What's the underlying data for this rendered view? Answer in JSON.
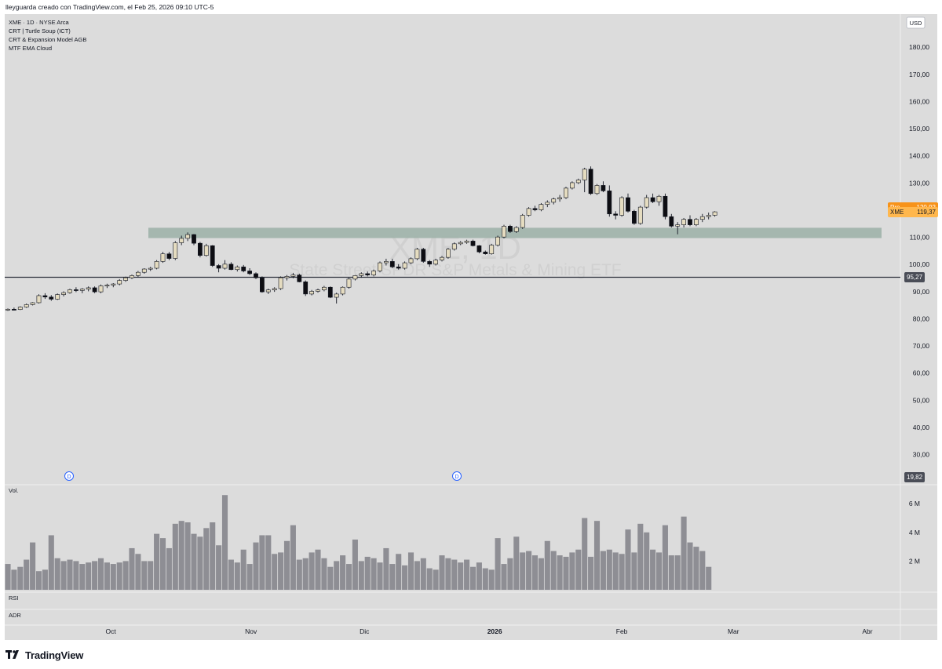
{
  "header": {
    "credit": "lleyguarda creado con TradingView.com, el Feb 25, 2026 09:10 UTC-5"
  },
  "legend": {
    "symbol_line": "XME · 1D · NYSE Arca",
    "indicators": [
      "CRT | Turtle Soup (ICT)",
      "CRT & Expansion Model AGB",
      "MTF EMA Cloud"
    ]
  },
  "watermark": {
    "ticker": "XME, 1D",
    "name": "State Street SPDR S&P Metals & Mining ETF"
  },
  "currency": "USD",
  "badges": {
    "pre_label": "Pre",
    "pre_value": "120,92",
    "last_label": "XME",
    "last_value": "119,37",
    "hline_value": "95,27",
    "extra_value": "19,82"
  },
  "panes": {
    "volume_label": "Vol.",
    "rsi_label": "RSI",
    "adr_label": "ADR"
  },
  "events": [
    "D",
    "D"
  ],
  "footer": {
    "brand": "TradingView"
  },
  "colors": {
    "background": "#dcdcdc",
    "up_body": "#e5dcc0",
    "down_body": "#0d0d12",
    "wick": "#131722",
    "zone": "#9eb2aa",
    "volume": "#8e8e94",
    "line": "#2a2e39",
    "pre_badge": "#f7931a",
    "last_badge": "#ffb74d",
    "level_badge": "#4a4d57"
  },
  "chart_data": {
    "type": "candlestick",
    "symbol": "XME",
    "timeframe": "1D",
    "y_axis": {
      "ticks": [
        "30,00",
        "40,00",
        "50,00",
        "60,00",
        "70,00",
        "80,00",
        "90,00",
        "100,00",
        "110,00",
        "120,00",
        "130,00",
        "140,00",
        "150,00",
        "160,00",
        "170,00",
        "180,00"
      ],
      "range": [
        25,
        195
      ]
    },
    "x_axis": {
      "ticks": [
        "Oct",
        "Nov",
        "Dic",
        "2026",
        "Feb",
        "Mar",
        "Abr"
      ]
    },
    "volume_axis": {
      "ticks": [
        "2 M",
        "4 M",
        "6 M"
      ]
    },
    "zone": {
      "low": 109.7,
      "high": 113.5
    },
    "horizontal_line": 95.27,
    "candles": [
      [
        83.2,
        83.8,
        82.9,
        83.5
      ],
      [
        83.5,
        84.1,
        83.1,
        83.4
      ],
      [
        83.4,
        84.6,
        83.2,
        84.3
      ],
      [
        84.3,
        85.6,
        84.0,
        85.2
      ],
      [
        85.2,
        86.1,
        84.9,
        85.9
      ],
      [
        85.9,
        89.0,
        85.6,
        88.5
      ],
      [
        88.5,
        89.4,
        87.3,
        88.0
      ],
      [
        88.0,
        88.7,
        86.6,
        87.2
      ],
      [
        87.2,
        89.3,
        86.9,
        88.9
      ],
      [
        88.9,
        90.1,
        88.2,
        89.6
      ],
      [
        89.6,
        91.1,
        89.2,
        90.7
      ],
      [
        90.7,
        91.6,
        89.8,
        90.4
      ],
      [
        90.4,
        91.3,
        89.4,
        90.9
      ],
      [
        90.9,
        91.9,
        90.1,
        91.4
      ],
      [
        91.4,
        91.9,
        89.4,
        89.9
      ],
      [
        89.9,
        92.6,
        89.4,
        92.1
      ],
      [
        92.1,
        92.9,
        91.3,
        92.4
      ],
      [
        92.4,
        93.1,
        91.6,
        92.8
      ],
      [
        92.8,
        94.6,
        92.3,
        94.1
      ],
      [
        94.1,
        95.5,
        93.6,
        95.1
      ],
      [
        95.1,
        96.3,
        94.6,
        95.9
      ],
      [
        95.9,
        97.6,
        95.4,
        97.1
      ],
      [
        97.1,
        98.6,
        96.6,
        98.3
      ],
      [
        98.3,
        99.1,
        97.6,
        98.6
      ],
      [
        98.6,
        101.6,
        98.2,
        101.1
      ],
      [
        101.1,
        104.6,
        100.6,
        103.9
      ],
      [
        103.9,
        104.6,
        101.6,
        102.2
      ],
      [
        102.2,
        108.6,
        101.6,
        108.0
      ],
      [
        108.0,
        110.6,
        107.1,
        109.6
      ],
      [
        109.6,
        111.8,
        108.6,
        111.0
      ],
      [
        111.0,
        111.2,
        107.1,
        107.8
      ],
      [
        107.8,
        108.3,
        102.6,
        103.3
      ],
      [
        103.3,
        107.6,
        102.9,
        106.9
      ],
      [
        106.9,
        107.1,
        99.1,
        99.6
      ],
      [
        99.6,
        100.1,
        97.1,
        98.6
      ],
      [
        98.6,
        101.6,
        98.1,
        100.1
      ],
      [
        100.1,
        100.8,
        97.9,
        98.1
      ],
      [
        98.1,
        99.6,
        97.4,
        99.1
      ],
      [
        99.1,
        99.8,
        97.1,
        97.6
      ],
      [
        97.6,
        98.6,
        96.1,
        96.6
      ],
      [
        96.6,
        97.1,
        94.6,
        95.1
      ],
      [
        95.1,
        95.6,
        89.6,
        89.9
      ],
      [
        89.9,
        91.1,
        89.1,
        90.6
      ],
      [
        90.6,
        91.6,
        89.9,
        91.1
      ],
      [
        91.1,
        95.6,
        90.6,
        95.1
      ],
      [
        95.1,
        96.1,
        94.1,
        95.6
      ],
      [
        95.6,
        96.9,
        94.9,
        96.1
      ],
      [
        96.1,
        96.6,
        93.4,
        93.6
      ],
      [
        93.6,
        94.1,
        88.4,
        89.1
      ],
      [
        89.1,
        90.6,
        88.6,
        90.1
      ],
      [
        90.1,
        91.1,
        89.6,
        90.6
      ],
      [
        90.6,
        92.1,
        90.1,
        91.6
      ],
      [
        91.6,
        91.9,
        87.6,
        87.9
      ],
      [
        87.9,
        89.6,
        85.6,
        89.1
      ],
      [
        89.1,
        91.9,
        88.6,
        91.6
      ],
      [
        91.6,
        95.1,
        91.1,
        94.6
      ],
      [
        94.6,
        96.1,
        94.1,
        95.9
      ],
      [
        95.9,
        97.1,
        95.1,
        96.6
      ],
      [
        96.6,
        97.4,
        95.6,
        96.1
      ],
      [
        96.1,
        98.1,
        95.6,
        97.6
      ],
      [
        97.6,
        101.1,
        97.1,
        100.6
      ],
      [
        100.6,
        102.1,
        99.6,
        101.1
      ],
      [
        101.1,
        102.1,
        98.6,
        99.1
      ],
      [
        99.1,
        100.1,
        98.1,
        98.6
      ],
      [
        98.6,
        101.1,
        98.1,
        100.6
      ],
      [
        100.6,
        102.6,
        100.1,
        102.1
      ],
      [
        102.1,
        106.1,
        101.6,
        105.6
      ],
      [
        105.6,
        106.1,
        100.6,
        101.1
      ],
      [
        101.1,
        101.6,
        99.1,
        100.1
      ],
      [
        100.1,
        102.1,
        99.6,
        101.6
      ],
      [
        101.6,
        103.1,
        101.1,
        102.6
      ],
      [
        102.6,
        106.1,
        102.1,
        105.6
      ],
      [
        105.6,
        108.1,
        105.1,
        107.6
      ],
      [
        107.6,
        108.6,
        107.1,
        108.1
      ],
      [
        108.1,
        109.1,
        107.6,
        108.6
      ],
      [
        108.6,
        109.1,
        106.6,
        106.9
      ],
      [
        106.9,
        107.1,
        104.1,
        104.6
      ],
      [
        104.6,
        105.1,
        103.6,
        103.9
      ],
      [
        103.9,
        107.6,
        103.6,
        107.1
      ],
      [
        107.1,
        110.6,
        106.6,
        110.1
      ],
      [
        110.1,
        114.6,
        109.6,
        114.1
      ],
      [
        114.1,
        114.6,
        111.6,
        112.1
      ],
      [
        112.1,
        114.1,
        111.6,
        113.6
      ],
      [
        113.6,
        118.6,
        113.1,
        118.1
      ],
      [
        118.1,
        121.1,
        117.6,
        120.6
      ],
      [
        120.6,
        121.6,
        119.6,
        120.1
      ],
      [
        120.1,
        122.6,
        119.6,
        122.1
      ],
      [
        122.1,
        123.6,
        121.1,
        122.9
      ],
      [
        122.9,
        124.6,
        122.1,
        124.1
      ],
      [
        124.1,
        125.6,
        123.1,
        124.6
      ],
      [
        124.6,
        128.6,
        124.1,
        128.1
      ],
      [
        128.1,
        130.6,
        127.6,
        130.1
      ],
      [
        130.1,
        131.6,
        129.6,
        131.1
      ],
      [
        131.1,
        135.6,
        126.6,
        135.1
      ],
      [
        135.1,
        136.1,
        125.6,
        126.1
      ],
      [
        126.1,
        129.6,
        125.6,
        129.1
      ],
      [
        129.1,
        130.6,
        126.6,
        127.1
      ],
      [
        127.1,
        129.1,
        117.6,
        118.6
      ],
      [
        118.6,
        119.6,
        116.6,
        118.1
      ],
      [
        118.1,
        125.1,
        117.6,
        124.6
      ],
      [
        124.6,
        126.1,
        119.1,
        119.6
      ],
      [
        119.6,
        120.1,
        114.6,
        115.1
      ],
      [
        115.1,
        121.6,
        114.6,
        121.1
      ],
      [
        121.1,
        125.6,
        120.6,
        124.6
      ],
      [
        124.6,
        126.1,
        122.6,
        123.1
      ],
      [
        123.1,
        125.6,
        121.6,
        125.1
      ],
      [
        125.1,
        126.1,
        116.6,
        117.6
      ],
      [
        117.6,
        118.6,
        113.6,
        114.1
      ],
      [
        114.1,
        115.6,
        111.1,
        114.6
      ],
      [
        114.6,
        117.1,
        113.6,
        116.6
      ],
      [
        116.6,
        118.1,
        114.1,
        114.6
      ],
      [
        114.6,
        117.1,
        114.1,
        116.6
      ],
      [
        116.6,
        118.6,
        115.6,
        117.6
      ],
      [
        117.6,
        119.1,
        116.6,
        118.1
      ],
      [
        118.1,
        119.6,
        117.6,
        119.37
      ]
    ],
    "volume_millions": [
      1.8,
      1.4,
      1.6,
      2.1,
      3.3,
      1.3,
      1.4,
      3.8,
      2.2,
      2.0,
      2.1,
      2.0,
      1.8,
      1.9,
      2.0,
      2.2,
      1.9,
      1.8,
      1.9,
      2.0,
      2.9,
      2.5,
      2.0,
      2.0,
      3.9,
      3.6,
      2.9,
      4.6,
      4.8,
      4.7,
      3.9,
      3.7,
      4.3,
      4.7,
      3.1,
      6.6,
      2.1,
      1.9,
      2.8,
      1.8,
      3.3,
      3.8,
      3.8,
      2.5,
      2.6,
      3.4,
      4.5,
      2.1,
      2.2,
      2.6,
      2.8,
      2.2,
      1.6,
      2.0,
      2.4,
      1.8,
      3.5,
      2.0,
      2.3,
      2.2,
      1.9,
      2.9,
      1.8,
      2.5,
      1.7,
      2.6,
      2.0,
      2.2,
      1.5,
      1.4,
      2.4,
      2.2,
      2.1,
      1.9,
      2.1,
      1.6,
      1.9,
      1.5,
      1.4,
      3.6,
      1.8,
      2.2,
      3.7,
      2.6,
      2.7,
      2.4,
      2.2,
      3.4,
      2.7,
      2.4,
      2.3,
      2.6,
      2.8,
      5.0,
      2.3,
      4.8,
      2.7,
      2.8,
      2.6,
      2.5,
      4.2,
      2.6,
      4.6,
      4.0,
      2.8,
      2.6,
      4.5,
      2.4,
      2.4,
      5.1,
      3.3,
      3.0,
      2.7,
      1.6
    ]
  }
}
